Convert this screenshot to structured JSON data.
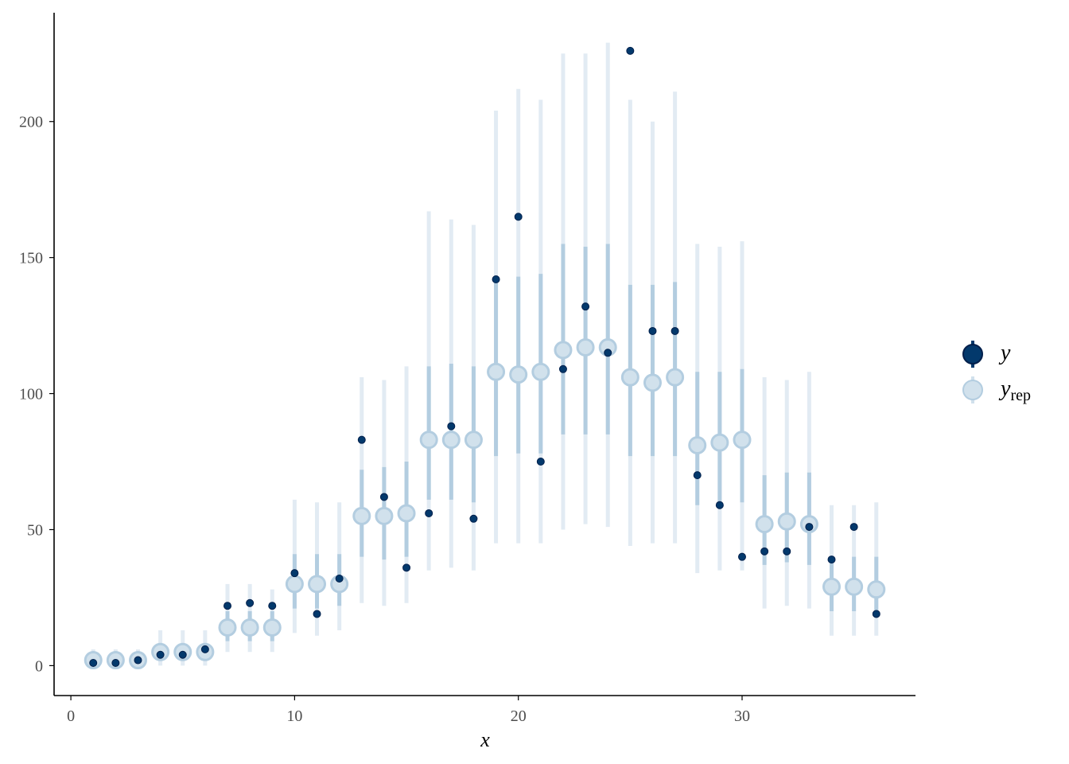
{
  "chart_data": {
    "type": "scatter",
    "xlabel": "x",
    "ylabel": "",
    "xlim": [
      -0.75,
      37.75
    ],
    "ylim": [
      -11,
      240
    ],
    "xticks": [
      0,
      10,
      20,
      30
    ],
    "yticks": [
      0,
      50,
      100,
      150,
      200
    ],
    "grid": false,
    "legend_position": "right",
    "colors": {
      "y": "#03396c",
      "y_rep_point": "#d1e1ec",
      "y_rep_outline": "#b3cde0",
      "inner_interval": "#b3cde0",
      "outer_interval": "#e2ebf3"
    },
    "legend": [
      {
        "key": "y",
        "label": "y",
        "subscript": ""
      },
      {
        "key": "y_rep",
        "label": "y",
        "subscript": "rep"
      }
    ],
    "x": [
      1,
      2,
      3,
      4,
      5,
      6,
      7,
      8,
      9,
      10,
      11,
      12,
      13,
      14,
      15,
      16,
      17,
      18,
      19,
      20,
      21,
      22,
      23,
      24,
      25,
      26,
      27,
      28,
      29,
      30,
      31,
      32,
      33,
      34,
      35,
      36
    ],
    "series": [
      {
        "name": "y",
        "role": "observed",
        "values": [
          1,
          1,
          2,
          4,
          4,
          6,
          22,
          23,
          22,
          34,
          19,
          32,
          83,
          62,
          36,
          56,
          88,
          54,
          142,
          165,
          75,
          109,
          132,
          115,
          226,
          123,
          123,
          70,
          59,
          40,
          42,
          42,
          51,
          39,
          51,
          19
        ]
      },
      {
        "name": "y_rep",
        "role": "predicted_median",
        "values": [
          2,
          2,
          2,
          5,
          5,
          5,
          14,
          14,
          14,
          30,
          30,
          30,
          55,
          55,
          56,
          83,
          83,
          83,
          108,
          107,
          108,
          116,
          117,
          117,
          106,
          104,
          106,
          81,
          82,
          83,
          52,
          53,
          52,
          29,
          29,
          28
        ]
      },
      {
        "name": "y_rep_inner_interval",
        "role": "interval",
        "low": [
          1,
          1,
          1,
          2,
          2,
          2,
          9,
          9,
          9,
          21,
          21,
          22,
          40,
          39,
          40,
          61,
          61,
          60,
          77,
          78,
          78,
          85,
          85,
          85,
          77,
          77,
          77,
          59,
          59,
          60,
          37,
          38,
          37,
          20,
          20,
          20
        ],
        "high": [
          4,
          4,
          4,
          7,
          7,
          7,
          20,
          20,
          20,
          41,
          41,
          41,
          72,
          73,
          75,
          110,
          111,
          110,
          142,
          143,
          144,
          155,
          154,
          155,
          140,
          140,
          141,
          108,
          108,
          109,
          70,
          71,
          71,
          38,
          40,
          40
        ]
      },
      {
        "name": "y_rep_outer_interval",
        "role": "interval",
        "low": [
          0,
          0,
          0,
          0,
          0,
          0,
          5,
          5,
          5,
          12,
          11,
          13,
          23,
          22,
          23,
          35,
          36,
          35,
          45,
          45,
          45,
          50,
          52,
          51,
          44,
          45,
          45,
          34,
          35,
          35,
          21,
          22,
          21,
          11,
          11,
          11
        ],
        "high": [
          6,
          6,
          6,
          13,
          13,
          13,
          30,
          30,
          28,
          61,
          60,
          60,
          106,
          105,
          110,
          167,
          164,
          162,
          204,
          212,
          208,
          225,
          225,
          229,
          208,
          200,
          211,
          155,
          154,
          156,
          106,
          105,
          108,
          59,
          59,
          60
        ]
      }
    ]
  }
}
